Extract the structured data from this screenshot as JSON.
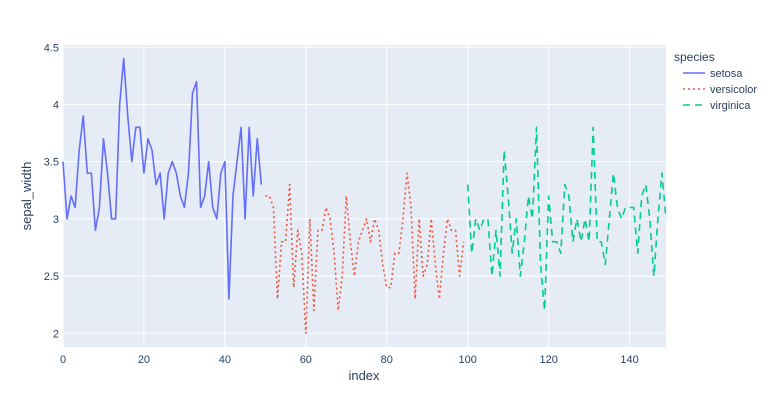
{
  "chart_data": {
    "type": "line",
    "xlabel": "index",
    "ylabel": "sepal_width",
    "xlim": [
      0,
      149
    ],
    "ylim": [
      1.88,
      4.52
    ],
    "x_ticks": [
      0,
      20,
      40,
      60,
      80,
      100,
      120,
      140
    ],
    "y_ticks": [
      2,
      2.5,
      3,
      3.5,
      4,
      4.5
    ],
    "grid": true,
    "legend": {
      "title": "species",
      "placement": "top-right"
    },
    "series": [
      {
        "name": "setosa",
        "color": "#636efa",
        "dash": "solid",
        "x_start": 0,
        "values": [
          3.5,
          3.0,
          3.2,
          3.1,
          3.6,
          3.9,
          3.4,
          3.4,
          2.9,
          3.1,
          3.7,
          3.4,
          3.0,
          3.0,
          4.0,
          4.4,
          3.9,
          3.5,
          3.8,
          3.8,
          3.4,
          3.7,
          3.6,
          3.3,
          3.4,
          3.0,
          3.4,
          3.5,
          3.4,
          3.2,
          3.1,
          3.4,
          4.1,
          4.2,
          3.1,
          3.2,
          3.5,
          3.1,
          3.0,
          3.4,
          3.5,
          2.3,
          3.2,
          3.5,
          3.8,
          3.0,
          3.8,
          3.2,
          3.7,
          3.3
        ]
      },
      {
        "name": "versicolor",
        "color": "#ef553b",
        "dash": "dot",
        "x_start": 50,
        "values": [
          3.2,
          3.2,
          3.1,
          2.3,
          2.8,
          2.8,
          3.3,
          2.4,
          2.9,
          2.7,
          2.0,
          3.0,
          2.2,
          2.9,
          2.9,
          3.1,
          3.0,
          2.7,
          2.2,
          2.5,
          3.2,
          2.8,
          2.5,
          2.8,
          2.9,
          3.0,
          2.8,
          3.0,
          2.9,
          2.6,
          2.4,
          2.4,
          2.7,
          2.7,
          3.0,
          3.4,
          3.1,
          2.3,
          3.0,
          2.5,
          2.6,
          3.0,
          2.6,
          2.3,
          2.7,
          3.0,
          2.9,
          2.9,
          2.5,
          2.8
        ]
      },
      {
        "name": "virginica",
        "color": "#00cc96",
        "dash": "dash",
        "x_start": 100,
        "values": [
          3.3,
          2.7,
          3.0,
          2.9,
          3.0,
          3.0,
          2.5,
          2.9,
          2.5,
          3.6,
          3.2,
          2.7,
          3.0,
          2.5,
          2.8,
          3.2,
          3.0,
          3.8,
          2.6,
          2.2,
          3.2,
          2.8,
          2.8,
          2.7,
          3.3,
          3.2,
          2.8,
          3.0,
          2.8,
          3.0,
          2.8,
          3.8,
          2.8,
          2.8,
          2.6,
          3.0,
          3.4,
          3.1,
          3.0,
          3.1,
          3.1,
          3.1,
          2.7,
          3.2,
          3.3,
          3.0,
          2.5,
          3.0,
          3.4,
          3.0
        ]
      }
    ]
  }
}
